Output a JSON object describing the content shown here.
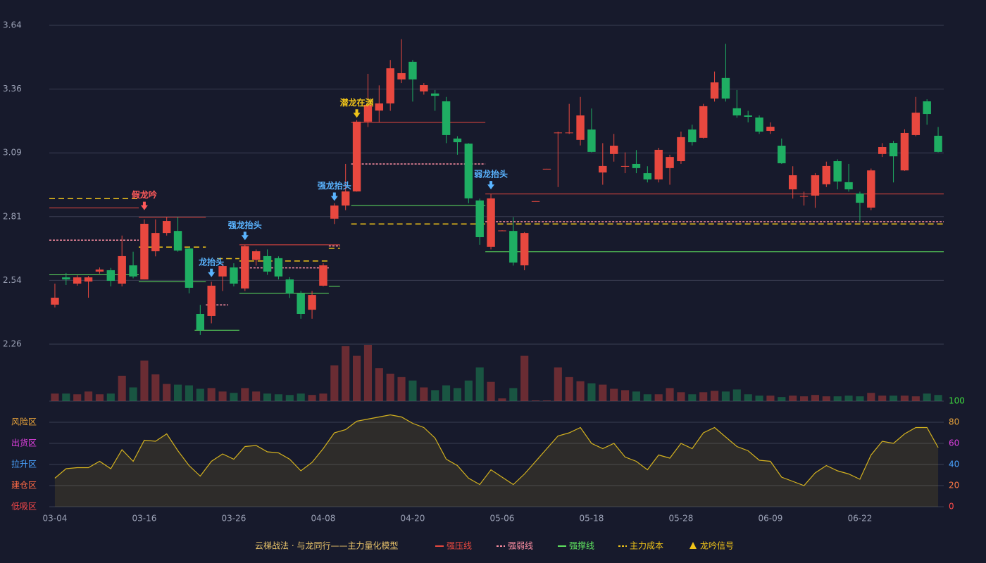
{
  "chart_data": {
    "type": "candlestick",
    "categories": [
      "03-04",
      null,
      null,
      null,
      null,
      null,
      null,
      null,
      "03-16",
      null,
      null,
      null,
      null,
      null,
      null,
      null,
      "03-26",
      null,
      null,
      null,
      null,
      null,
      null,
      null,
      "04-08",
      null,
      null,
      null,
      null,
      null,
      null,
      null,
      "04-20",
      null,
      null,
      null,
      null,
      null,
      null,
      null,
      "05-06",
      null,
      null,
      null,
      null,
      null,
      null,
      null,
      "05-18",
      null,
      null,
      null,
      null,
      null,
      null,
      null,
      "05-28",
      null,
      null,
      null,
      null,
      null,
      null,
      null,
      "06-09",
      null,
      null,
      null,
      null,
      null,
      null,
      null,
      "06-22",
      null,
      null,
      null,
      null,
      null,
      null,
      null
    ],
    "open": [
      2.431,
      2.549,
      2.522,
      2.531,
      2.574,
      2.58,
      2.522,
      2.601,
      2.54,
      2.662,
      2.741,
      2.75,
      2.674,
      2.391,
      2.382,
      2.553,
      2.592,
      2.501,
      2.625,
      2.641,
      2.632,
      2.54,
      2.479,
      2.409,
      2.513,
      2.803,
      2.86,
      2.921,
      3.223,
      3.271,
      3.302,
      3.406,
      3.482,
      3.354,
      3.345,
      3.311,
      3.15,
      3.128,
      2.882,
      2.681,
      2.75,
      2.75,
      2.601,
      2.877,
      3.017,
      3.174,
      3.174,
      3.144,
      3.189,
      3.003,
      3.083,
      3.029,
      3.04,
      3.0,
      2.973,
      3.022,
      3.052,
      3.189,
      3.153,
      3.323,
      3.412,
      3.281,
      3.25,
      3.241,
      3.183,
      3.119,
      2.93,
      2.899,
      2.903,
      2.952,
      3.052,
      2.961,
      2.912,
      2.851,
      3.083,
      3.131,
      3.012,
      3.165,
      3.311,
      3.162
    ],
    "close": [
      2.461,
      2.54,
      2.549,
      2.549,
      2.583,
      2.534,
      2.641,
      2.553,
      2.781,
      2.741,
      2.793,
      2.665,
      2.504,
      2.321,
      2.513,
      2.598,
      2.522,
      2.684,
      2.662,
      2.574,
      2.553,
      2.479,
      2.391,
      2.473,
      2.601,
      2.86,
      2.921,
      3.223,
      3.296,
      3.302,
      3.454,
      3.433,
      3.406,
      3.381,
      3.335,
      3.165,
      3.134,
      2.891,
      2.723,
      2.891,
      2.752,
      2.613,
      2.741,
      2.879,
      3.019,
      3.176,
      3.176,
      3.25,
      3.092,
      3.031,
      3.119,
      3.031,
      3.022,
      2.973,
      3.101,
      3.07,
      3.156,
      3.134,
      3.29,
      3.393,
      3.323,
      3.25,
      3.244,
      3.18,
      3.201,
      3.043,
      2.991,
      2.901,
      2.991,
      3.031,
      2.964,
      2.93,
      2.872,
      3.012,
      3.113,
      3.073,
      3.174,
      3.262,
      3.256,
      3.092
    ],
    "high": [
      2.522,
      2.568,
      2.558,
      2.555,
      2.592,
      2.59,
      2.73,
      2.66,
      2.8,
      2.8,
      2.81,
      2.81,
      2.68,
      2.43,
      2.53,
      2.61,
      2.61,
      2.69,
      2.67,
      2.67,
      2.64,
      2.55,
      2.49,
      2.49,
      2.61,
      2.87,
      3.04,
      3.23,
      3.43,
      3.38,
      3.49,
      3.58,
      3.49,
      3.39,
      3.36,
      3.33,
      3.16,
      3.13,
      2.89,
      2.91,
      2.753,
      2.81,
      2.745,
      2.879,
      3.019,
      3.18,
      3.3,
      3.33,
      3.28,
      3.13,
      3.17,
      3.09,
      3.1,
      3.03,
      3.11,
      3.08,
      3.18,
      3.21,
      3.3,
      3.44,
      3.56,
      3.36,
      3.27,
      3.25,
      3.22,
      3.15,
      3.03,
      2.92,
      3.0,
      3.05,
      3.06,
      3.04,
      2.92,
      3.02,
      3.13,
      3.14,
      3.19,
      3.33,
      3.32,
      3.2
    ],
    "low": [
      2.419,
      2.516,
      2.513,
      2.461,
      2.565,
      2.51,
      2.51,
      2.545,
      2.54,
      2.64,
      2.73,
      2.66,
      2.48,
      2.3,
      2.35,
      2.49,
      2.51,
      2.49,
      2.6,
      2.56,
      2.54,
      2.46,
      2.37,
      2.37,
      2.51,
      2.78,
      2.84,
      2.92,
      3.2,
      3.22,
      3.27,
      3.39,
      3.31,
      3.34,
      3.27,
      3.13,
      3.08,
      2.87,
      2.69,
      2.67,
      2.75,
      2.6,
      2.58,
      2.877,
      3.017,
      2.94,
      3.17,
      3.12,
      3.09,
      2.95,
      3.05,
      3.0,
      3.0,
      2.96,
      2.96,
      2.95,
      3.04,
      3.12,
      3.15,
      3.31,
      3.31,
      3.24,
      3.22,
      3.17,
      3.17,
      3.04,
      2.89,
      2.86,
      2.85,
      2.94,
      2.93,
      2.92,
      2.79,
      2.84,
      3.07,
      2.96,
      3.01,
      3.16,
      3.21,
      3.09
    ],
    "up_color": "#e8483f",
    "down_color": "#1fae63",
    "ylim": [
      2.26,
      3.64
    ],
    "yticks": [
      {
        "value": 2.26,
        "label": "2.26"
      },
      {
        "value": 2.536,
        "label": "2.54"
      },
      {
        "value": 2.812,
        "label": "2.81"
      },
      {
        "value": 3.088,
        "label": "3.09"
      },
      {
        "value": 3.364,
        "label": "3.36"
      },
      {
        "value": 3.64,
        "label": "3.64"
      }
    ],
    "grid": true,
    "volume": {
      "values": [
        11,
        11,
        10,
        14,
        10,
        11,
        37,
        20,
        59,
        39,
        25,
        24,
        23,
        18,
        19,
        14,
        12,
        19,
        14,
        11,
        10,
        9,
        11,
        9,
        11,
        52,
        80,
        66,
        82,
        48,
        40,
        35,
        30,
        20,
        16,
        23,
        19,
        30,
        49,
        28,
        4,
        19,
        66,
        1,
        1,
        49,
        35,
        29,
        26,
        24,
        18,
        16,
        14,
        10,
        10,
        19,
        13,
        10,
        13,
        15,
        14,
        17,
        10,
        8,
        8,
        6,
        8,
        7,
        9,
        7,
        7,
        8,
        7,
        12,
        8,
        8,
        8,
        7,
        11,
        9
      ]
    },
    "oscillator": {
      "values": [
        27,
        36,
        37,
        37,
        43,
        36,
        54,
        43,
        63,
        62,
        69,
        53,
        39,
        29,
        43,
        50,
        45,
        57,
        58,
        52,
        51,
        45,
        34,
        42,
        55,
        70,
        73,
        81,
        83,
        85,
        87,
        85,
        79,
        75,
        65,
        45,
        39,
        27,
        21,
        35,
        28,
        21,
        31,
        43,
        55,
        67,
        70,
        75,
        60,
        55,
        60,
        47,
        43,
        35,
        49,
        46,
        60,
        55,
        70,
        75,
        66,
        57,
        53,
        44,
        43,
        28,
        24,
        20,
        32,
        39,
        34,
        31,
        26,
        49,
        62,
        60,
        69,
        75,
        75,
        56
      ],
      "color": "#d4b21f",
      "ylim": [
        0,
        100
      ],
      "yticks": [
        0,
        20,
        40,
        60,
        80,
        100
      ],
      "ytick_colors": [
        "#ff4a4a",
        "#ff7a45",
        "#4aa3ff",
        "#e040e0",
        "#e8a33a",
        "#3fdc3f"
      ],
      "zones": [
        {
          "label": "风险区",
          "value": 80,
          "color": "#e8a33a"
        },
        {
          "label": "出货区",
          "value": 60,
          "color": "#e040e0"
        },
        {
          "label": "拉升区",
          "value": 40,
          "color": "#4aa3ff"
        },
        {
          "label": "建仓区",
          "value": 20,
          "color": "#ff6a45"
        },
        {
          "label": "低吸区",
          "value": 0,
          "color": "#ff4a4a"
        }
      ]
    },
    "lines": [
      {
        "name": "强压线",
        "color": "#e8483f",
        "dash": "none",
        "segments": [
          {
            "value": 2.85,
            "from": 0,
            "to": 7
          },
          {
            "value": 2.81,
            "from": 8,
            "to": 13
          },
          {
            "value": 2.69,
            "from": 17,
            "to": 24
          },
          {
            "value": 2.69,
            "from": 25,
            "to": 25
          },
          {
            "value": 3.22,
            "from": 27,
            "to": 38
          },
          {
            "value": 2.91,
            "from": 39,
            "to": 79
          }
        ]
      },
      {
        "name": "强弱线",
        "color": "#ff8fa3",
        "dash": "3,2",
        "segments": [
          {
            "value": 2.71,
            "from": 0,
            "to": 7
          },
          {
            "value": 2.43,
            "from": 14,
            "to": 15
          },
          {
            "value": 2.59,
            "from": 17,
            "to": 24
          },
          {
            "value": 2.685,
            "from": 25,
            "to": 25
          },
          {
            "value": 3.04,
            "from": 27,
            "to": 38
          },
          {
            "value": 2.79,
            "from": 39,
            "to": 79
          }
        ]
      },
      {
        "name": "强撑线",
        "color": "#5fe35f",
        "dash": "none",
        "segments": [
          {
            "value": 2.56,
            "from": 0,
            "to": 7
          },
          {
            "value": 2.53,
            "from": 8,
            "to": 13
          },
          {
            "value": 2.32,
            "from": 13,
            "to": 16
          },
          {
            "value": 2.48,
            "from": 17,
            "to": 24
          },
          {
            "value": 2.51,
            "from": 25,
            "to": 25
          },
          {
            "value": 2.86,
            "from": 27,
            "to": 38
          },
          {
            "value": 2.66,
            "from": 39,
            "to": 79
          }
        ]
      },
      {
        "name": "主力成本",
        "color": "#f0c419",
        "dash": "8,5",
        "segments": [
          {
            "value": 2.89,
            "from": 0,
            "to": 7
          },
          {
            "value": 2.68,
            "from": 8,
            "to": 13
          },
          {
            "value": 2.63,
            "from": 15,
            "to": 16
          },
          {
            "value": 2.62,
            "from": 17,
            "to": 24
          },
          {
            "value": 2.675,
            "from": 25,
            "to": 25
          },
          {
            "value": 2.78,
            "from": 27,
            "to": 79
          }
        ]
      }
    ],
    "annotations": [
      {
        "text": "假龙吟",
        "index": 8,
        "value": 2.84,
        "color": "#ff5a5a"
      },
      {
        "text": "龙抬头",
        "index": 14,
        "value": 2.55,
        "color": "#5ab4ff"
      },
      {
        "text": "强龙抬头",
        "index": 17,
        "value": 2.71,
        "color": "#5ab4ff"
      },
      {
        "text": "强龙抬头",
        "index": 25,
        "value": 2.88,
        "color": "#5ab4ff"
      },
      {
        "text": "潜龙在渊",
        "index": 27,
        "value": 3.24,
        "color": "#f0c419"
      },
      {
        "text": "弱龙抬头",
        "index": 39,
        "value": 2.93,
        "color": "#5ab4ff"
      }
    ],
    "legend_title": "云梯战法 · 与龙同行——主力量化模型",
    "signal_legend": "龙吟信号",
    "signal_color": "#f0c419"
  }
}
